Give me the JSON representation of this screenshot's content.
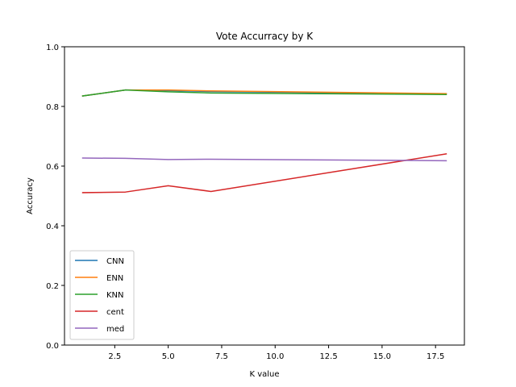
{
  "chart_data": {
    "type": "line",
    "title": "Vote Accurracy by K",
    "xlabel": "K value",
    "ylabel": "Accuracy",
    "xlim": [
      0.15,
      18.85
    ],
    "ylim": [
      0,
      1.0
    ],
    "xticks": [
      2.5,
      5.0,
      7.5,
      10.0,
      12.5,
      15.0,
      17.5
    ],
    "xtick_labels": [
      "2.5",
      "5.0",
      "7.5",
      "10.0",
      "12.5",
      "15.0",
      "17.5"
    ],
    "yticks": [
      0.0,
      0.2,
      0.4,
      0.6,
      0.8,
      1.0
    ],
    "ytick_labels": [
      "0.0",
      "0.2",
      "0.4",
      "0.6",
      "0.8",
      "1.0"
    ],
    "grid": false,
    "legend_position": "lower-left",
    "x": [
      1,
      3,
      5,
      7,
      18
    ],
    "series": [
      {
        "name": "CNN",
        "color": "#1f77b4",
        "values": [
          0.835,
          0.855,
          0.853,
          0.85,
          0.842
        ]
      },
      {
        "name": "ENN",
        "color": "#ff7f0e",
        "values": [
          0.835,
          0.855,
          0.855,
          0.852,
          0.843
        ]
      },
      {
        "name": "KNN",
        "color": "#2ca02c",
        "values": [
          0.835,
          0.855,
          0.849,
          0.845,
          0.84
        ]
      },
      {
        "name": "cent",
        "color": "#d62728",
        "values": [
          0.511,
          0.513,
          0.534,
          0.515,
          0.641
        ]
      },
      {
        "name": "med",
        "color": "#9467bd",
        "values": [
          0.627,
          0.626,
          0.622,
          0.623,
          0.618
        ]
      }
    ]
  }
}
